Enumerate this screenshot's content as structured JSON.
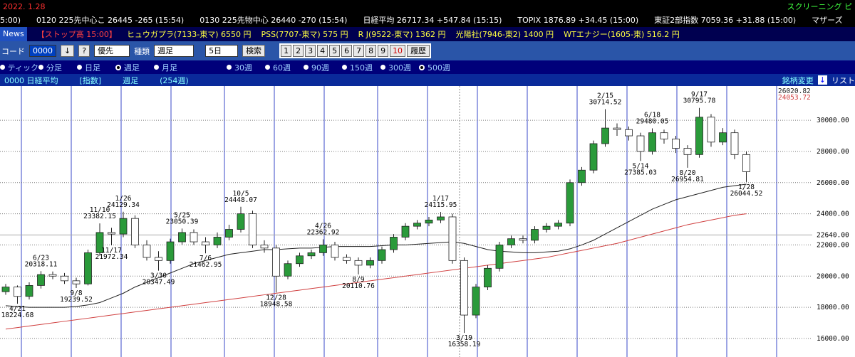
{
  "top_bar": {
    "date": "2022. 1.28",
    "right": "スクリーニング ピ",
    "tickers": [
      "5:00)",
      "0120 225先中心こ 26445 -265 (15:54)",
      "0130 225先物中心 26440 -270 (15:54)",
      "日経平均 26717.34 +547.84 (15:15)",
      "TOPIX 1876.89 +34.45 (15:00)",
      "東証2部指数 7059.36 +31.88 (15:00)",
      "マザーズ"
    ]
  },
  "news_bar": {
    "button": "News",
    "headline": "【ストップ高 15:00】",
    "items": [
      "ヒュウガプラ(7133-東マ) 6550 円",
      "PSS(7707-東マ) 575 円",
      "R J(9522-東マ) 1362 円",
      "光陽社(7946-東2) 1400 円",
      "WTエナジー(1605-東) 516.2 円"
    ]
  },
  "controls": {
    "code_label": "コード",
    "code": "0000",
    "down": "↓",
    "help": "?",
    "order": "優先",
    "kind_label": "種類",
    "kind": "週足",
    "days": "5日",
    "search": "検索",
    "pages": [
      "1",
      "2",
      "3",
      "4",
      "5",
      "6",
      "7",
      "8",
      "9",
      "10"
    ],
    "history": "履歴"
  },
  "radios": {
    "items": [
      "ティック",
      "分足",
      "日足",
      "週足",
      "月足",
      "30週",
      "60週",
      "90週",
      "150週",
      "300週",
      "500週"
    ],
    "selected": [
      3,
      10
    ]
  },
  "title_bar": {
    "code_name": "0000 日経平均",
    "kind": "[指数]",
    "period": "週足",
    "count": "(254週)",
    "change": "銘柄変更",
    "list": "リスト"
  },
  "chart_data": {
    "type": "candlestick",
    "up_color": "#2a9a3a",
    "down_color": "#ffffff",
    "ylim": [
      14810,
      32196
    ],
    "yticks": [
      {
        "value": 16000,
        "label": "16000.00"
      },
      {
        "value": 18000,
        "label": "18000.00"
      },
      {
        "value": 20000,
        "label": "20000.00"
      },
      {
        "value": 22000,
        "label": "22000.00"
      },
      {
        "value": 24000,
        "label": "24000.00"
      },
      {
        "value": 26000,
        "label": "26000.00"
      },
      {
        "value": 28000,
        "label": "28000.00"
      },
      {
        "value": 30000,
        "label": "30000.00"
      }
    ],
    "reference_line": {
      "value": 22640,
      "label": "22640.00"
    },
    "candles": [
      [
        19000,
        19500,
        18800,
        19300
      ],
      [
        19300,
        19400,
        18224,
        18700
      ],
      [
        18700,
        19600,
        18500,
        19400
      ],
      [
        19400,
        20318,
        19200,
        20100
      ],
      [
        20100,
        20300,
        19800,
        20000
      ],
      [
        20000,
        20200,
        19500,
        19700
      ],
      [
        19700,
        19900,
        19239,
        19500
      ],
      [
        19500,
        21700,
        19400,
        21500
      ],
      [
        21500,
        23382,
        21300,
        22800
      ],
      [
        22800,
        23100,
        21972,
        22700
      ],
      [
        22700,
        24129,
        22500,
        23700
      ],
      [
        23700,
        23900,
        21800,
        22000
      ],
      [
        22000,
        22300,
        21000,
        21200
      ],
      [
        21200,
        21600,
        20347,
        21000
      ],
      [
        21000,
        22400,
        20800,
        22200
      ],
      [
        22200,
        23050,
        22000,
        22800
      ],
      [
        22800,
        23000,
        22000,
        22200
      ],
      [
        22200,
        22500,
        21462,
        22000
      ],
      [
        22000,
        22800,
        21800,
        22500
      ],
      [
        22500,
        23300,
        22300,
        23000
      ],
      [
        23000,
        24448,
        22800,
        24000
      ],
      [
        24000,
        24200,
        21800,
        22000
      ],
      [
        22000,
        22300,
        21500,
        21800
      ],
      [
        21800,
        22000,
        18948,
        20000
      ],
      [
        20000,
        21000,
        19800,
        20800
      ],
      [
        20800,
        21500,
        20600,
        21300
      ],
      [
        21300,
        21700,
        21100,
        21500
      ],
      [
        21500,
        22362,
        21300,
        22000
      ],
      [
        22000,
        22200,
        21000,
        21200
      ],
      [
        21200,
        21400,
        20800,
        21000
      ],
      [
        21000,
        21200,
        20110,
        20700
      ],
      [
        20700,
        21200,
        20500,
        21000
      ],
      [
        21000,
        21900,
        20800,
        21700
      ],
      [
        21700,
        22700,
        21500,
        22500
      ],
      [
        22500,
        23400,
        22300,
        23200
      ],
      [
        23200,
        23600,
        23000,
        23400
      ],
      [
        23400,
        23800,
        23200,
        23600
      ],
      [
        23600,
        24115,
        23400,
        23800
      ],
      [
        23800,
        24000,
        20800,
        21000
      ],
      [
        21000,
        21200,
        16358,
        17500
      ],
      [
        17500,
        19500,
        17300,
        19300
      ],
      [
        19300,
        20700,
        19100,
        20500
      ],
      [
        20500,
        22200,
        20300,
        22000
      ],
      [
        22000,
        22600,
        21800,
        22400
      ],
      [
        22400,
        22600,
        22100,
        22300
      ],
      [
        22300,
        23200,
        22100,
        23000
      ],
      [
        23000,
        23400,
        22800,
        23200
      ],
      [
        23200,
        23600,
        23000,
        23400
      ],
      [
        23400,
        26200,
        23200,
        26000
      ],
      [
        26000,
        27000,
        25800,
        26800
      ],
      [
        26800,
        28700,
        26600,
        28500
      ],
      [
        28500,
        30714,
        28300,
        29500
      ],
      [
        29500,
        29800,
        29000,
        29400
      ],
      [
        29400,
        29600,
        28700,
        29000
      ],
      [
        29000,
        29200,
        27385,
        28000
      ],
      [
        28000,
        29480,
        27800,
        29200
      ],
      [
        29200,
        29400,
        28500,
        28800
      ],
      [
        28800,
        29000,
        27900,
        28200
      ],
      [
        28200,
        28400,
        26954,
        27800
      ],
      [
        27800,
        30795,
        27600,
        30200
      ],
      [
        30200,
        30400,
        28300,
        28600
      ],
      [
        28600,
        29500,
        28400,
        29200
      ],
      [
        29200,
        29400,
        27500,
        27800
      ],
      [
        27800,
        28000,
        26044,
        26700
      ]
    ],
    "series": [
      {
        "color": "#202020",
        "values": [
          18100,
          18050,
          18000,
          18000,
          18000,
          18000,
          18050,
          18150,
          18300,
          18600,
          18900,
          19300,
          19600,
          19900,
          20200,
          20500,
          20800,
          21000,
          21200,
          21400,
          21500,
          21600,
          21700,
          21700,
          21750,
          21800,
          21800,
          21850,
          21900,
          21900,
          21900,
          21900,
          21950,
          22000,
          22000,
          22050,
          22100,
          22150,
          22200,
          22100,
          21900,
          21700,
          21600,
          21550,
          21500,
          21500,
          21550,
          21600,
          21750,
          22000,
          22300,
          22700,
          23100,
          23500,
          23900,
          24300,
          24600,
          24900,
          25100,
          25300,
          25500,
          25700,
          25800,
          25900
        ]
      },
      {
        "color": "#d04040",
        "values": [
          16600,
          16700,
          16800,
          16900,
          17000,
          17100,
          17200,
          17300,
          17400,
          17500,
          17600,
          17700,
          17800,
          17900,
          18000,
          18100,
          18200,
          18300,
          18400,
          18500,
          18600,
          18700,
          18800,
          18900,
          19000,
          19100,
          19200,
          19300,
          19400,
          19500,
          19600,
          19700,
          19800,
          19900,
          20000,
          20100,
          20200,
          20300,
          20400,
          20500,
          20600,
          20700,
          20800,
          20900,
          21000,
          21100,
          21200,
          21350,
          21500,
          21650,
          21800,
          21950,
          22100,
          22300,
          22500,
          22700,
          22900,
          23100,
          23300,
          23450,
          23600,
          23750,
          23900,
          24000
        ]
      }
    ],
    "ma_labels": [
      {
        "value": 26020.82,
        "color": "#202020"
      },
      {
        "value": 24053.72,
        "color": "#d04040"
      }
    ],
    "annotations": [
      {
        "date": "4/21",
        "value": 18224.68
      },
      {
        "date": "6/23",
        "value": 20318.11
      },
      {
        "date": "9/8",
        "value": 19239.52
      },
      {
        "date": "11/10",
        "value": 23382.15
      },
      {
        "date": "11/17",
        "value": 21972.34
      },
      {
        "date": "1/26",
        "value": 24129.34
      },
      {
        "date": "3/30",
        "value": 20347.49
      },
      {
        "date": "5/25",
        "value": 23050.39
      },
      {
        "date": "7/6",
        "value": 21462.95
      },
      {
        "date": "10/5",
        "value": 24448.07
      },
      {
        "date": "12/28",
        "value": 18948.58
      },
      {
        "date": "4/26",
        "value": 22362.92
      },
      {
        "date": "8/9",
        "value": 20110.76
      },
      {
        "date": "1/17",
        "value": 24115.95
      },
      {
        "date": "3/19",
        "value": 16358.19
      },
      {
        "date": "2/15",
        "value": 30714.52
      },
      {
        "date": "5/14",
        "value": 27385.03
      },
      {
        "date": "6/18",
        "value": 29480.05
      },
      {
        "date": "8/20",
        "value": 26954.81
      },
      {
        "date": "9/17",
        "value": 30795.78
      },
      {
        "date": "1/28",
        "value": 26044.52
      }
    ]
  }
}
